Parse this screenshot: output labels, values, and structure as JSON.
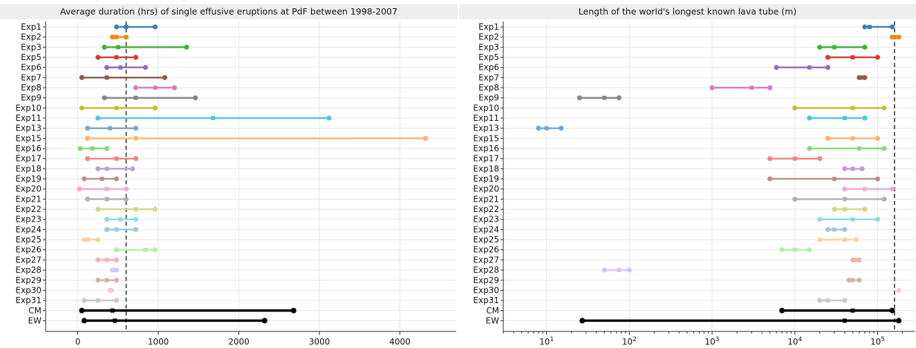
{
  "chart_data": [
    {
      "type": "dumbbell",
      "title": "Average duration (hrs) of single effusive eruptions at PdF between 1998-2007",
      "xlabel": "",
      "ylabel": "",
      "xscale": "linear",
      "xlim": [
        -400,
        4700
      ],
      "xticks": [
        0,
        1000,
        2000,
        3000,
        4000
      ],
      "xtick_labels": [
        "0",
        "1000",
        "2000",
        "3000",
        "4000"
      ],
      "reference_line": 600,
      "grid": true,
      "categories": [
        "Exp1",
        "Exp2",
        "Exp3",
        "Exp5",
        "Exp6",
        "Exp7",
        "Exp8",
        "Exp9",
        "Exp10",
        "Exp11",
        "Exp13",
        "Exp15",
        "Exp16",
        "Exp17",
        "Exp18",
        "Exp19",
        "Exp20",
        "Exp21",
        "Exp22",
        "Exp23",
        "Exp24",
        "Exp25",
        "Exp26",
        "Exp27",
        "Exp28",
        "Exp29",
        "Exp30",
        "Exp31",
        "CM",
        "EW"
      ],
      "low": [
        480,
        430,
        330,
        250,
        360,
        50,
        720,
        330,
        50,
        250,
        120,
        120,
        30,
        120,
        250,
        80,
        20,
        120,
        250,
        360,
        360,
        80,
        480,
        250,
        430,
        250,
        400,
        80,
        50,
        80
      ],
      "mid": [
        600,
        480,
        500,
        480,
        530,
        360,
        960,
        720,
        480,
        1680,
        400,
        720,
        180,
        480,
        360,
        300,
        360,
        360,
        720,
        530,
        480,
        120,
        840,
        360,
        460,
        360,
        410,
        250,
        430,
        460
      ],
      "high": [
        960,
        600,
        1350,
        720,
        840,
        1080,
        1200,
        1460,
        960,
        3120,
        720,
        4320,
        360,
        720,
        680,
        480,
        600,
        600,
        960,
        720,
        720,
        250,
        960,
        480,
        480,
        480,
        420,
        480,
        2680,
        2320
      ]
    },
    {
      "type": "dumbbell",
      "title": "Length of the world's longest known lava tube (m)",
      "xlabel": "",
      "ylabel": "",
      "xscale": "log",
      "xlim": [
        3,
        280000
      ],
      "xticks": [
        10,
        100,
        1000,
        10000,
        100000
      ],
      "xtick_labels": [
        "10^1",
        "10^2",
        "10^3",
        "10^4",
        "10^5"
      ],
      "reference_line": 160000,
      "grid": true,
      "categories": [
        "Exp1",
        "Exp2",
        "Exp3",
        "Exp5",
        "Exp6",
        "Exp7",
        "Exp8",
        "Exp9",
        "Exp10",
        "Exp11",
        "Exp13",
        "Exp15",
        "Exp16",
        "Exp17",
        "Exp18",
        "Exp19",
        "Exp20",
        "Exp21",
        "Exp22",
        "Exp23",
        "Exp24",
        "Exp25",
        "Exp26",
        "Exp27",
        "Exp28",
        "Exp29",
        "Exp30",
        "Exp31",
        "CM",
        "EW"
      ],
      "low": [
        70000,
        150000,
        20000,
        25000,
        6000,
        60000,
        1000,
        25,
        10000,
        15000,
        8,
        25000,
        15000,
        5000,
        40000,
        5000,
        40000,
        10000,
        30000,
        20000,
        25000,
        20000,
        7000,
        50000,
        50,
        45000,
        180000,
        20000,
        7000,
        27
      ],
      "mid": [
        80000,
        160000,
        30000,
        50000,
        15000,
        65000,
        3000,
        50,
        50000,
        40000,
        10,
        50000,
        60000,
        10000,
        50000,
        30000,
        70000,
        40000,
        40000,
        50000,
        30000,
        40000,
        10000,
        55000,
        75,
        50000,
        180000,
        25000,
        50000,
        40000
      ],
      "high": [
        150000,
        180000,
        70000,
        100000,
        25000,
        70000,
        5000,
        75,
        120000,
        70000,
        15,
        100000,
        120000,
        20000,
        65000,
        100000,
        150000,
        120000,
        70000,
        100000,
        40000,
        55000,
        15000,
        60000,
        100,
        60000,
        180000,
        40000,
        150000,
        180000
      ]
    }
  ],
  "colors": {
    "series_cycle": [
      "#3a7fc1",
      "#f5870f",
      "#3cb332",
      "#d63b33",
      "#9868c6",
      "#8c5a4d",
      "#df77c1",
      "#868686",
      "#c2bf35",
      "#4fc7d3",
      "#74a7d5",
      "#ffb46e",
      "#86d97a",
      "#f08585",
      "#c19ae3",
      "#bc8e87",
      "#f3a8d6",
      "#b0b0b0",
      "#d8d57f",
      "#8edbe5",
      "#9fc4e3",
      "#ffcf99",
      "#b5ecaa",
      "#f7b0b0",
      "#d8c3f0",
      "#d1b3ad",
      "#f7c6e6",
      "#c8c8c8",
      "#000000",
      "#000000"
    ],
    "reference_line": "#333333",
    "grid": "#e6e6e6"
  }
}
